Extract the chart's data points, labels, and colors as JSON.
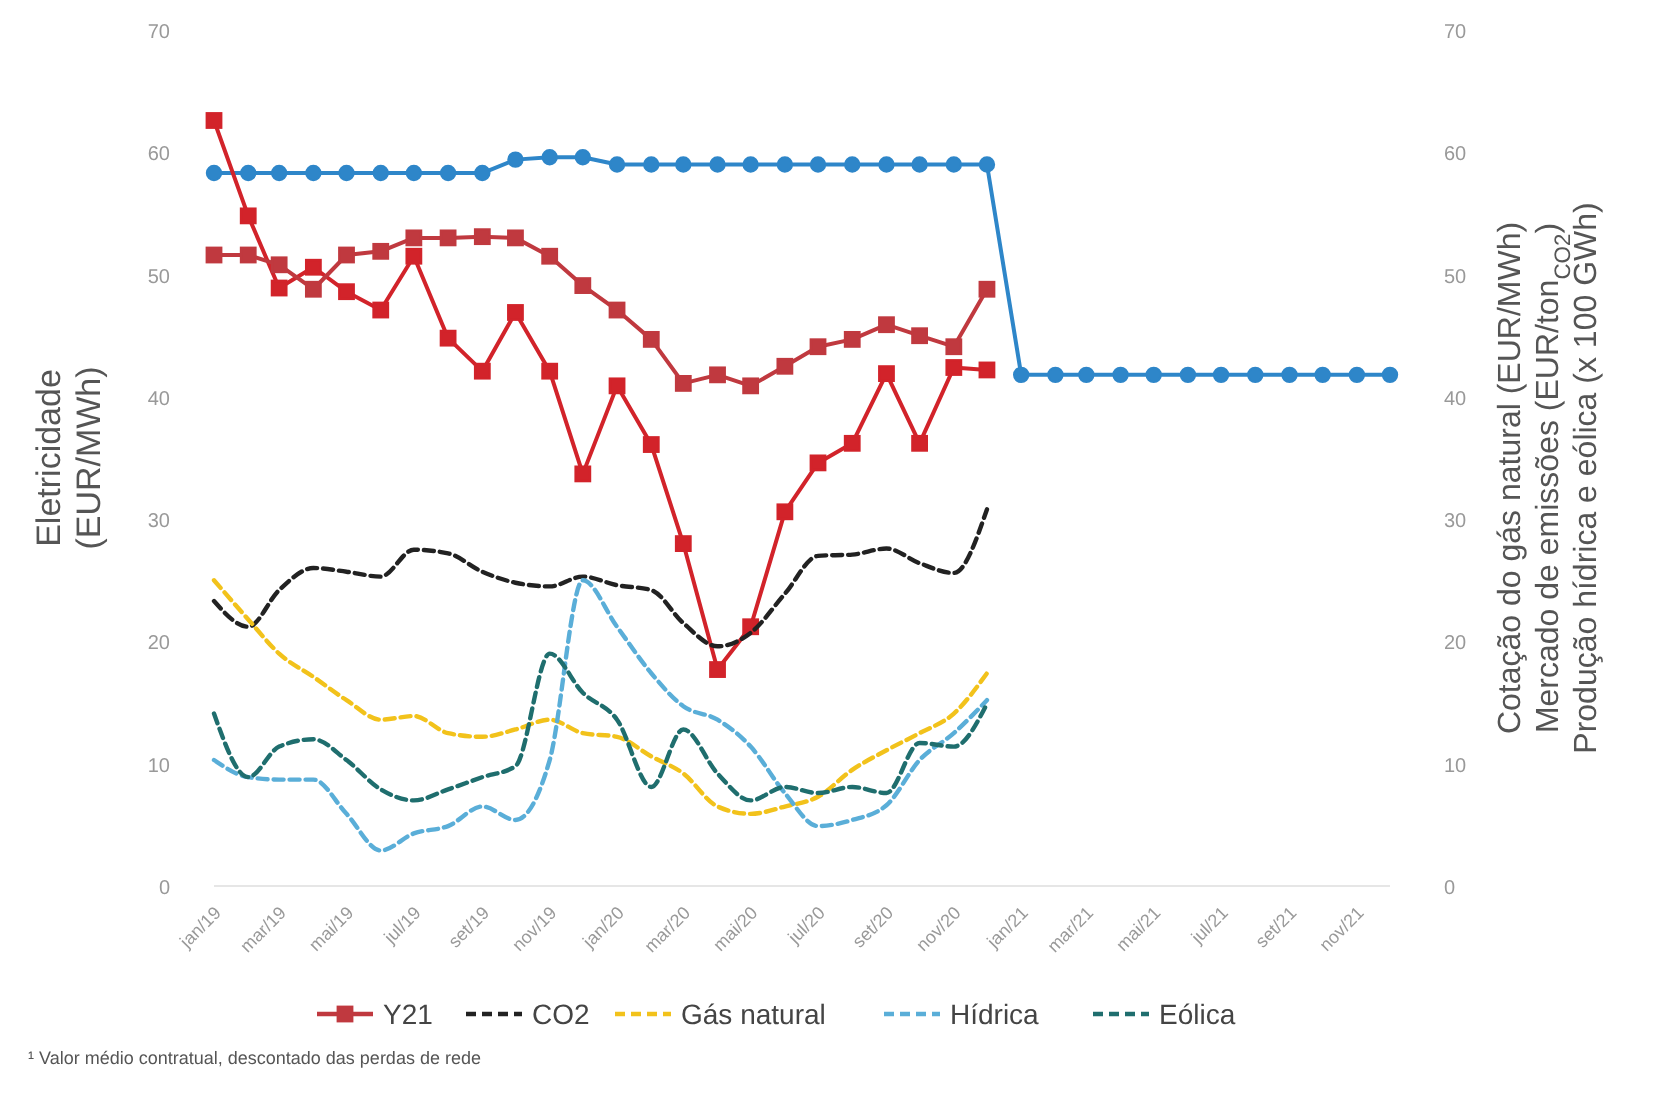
{
  "chart_data": {
    "type": "line",
    "ylabel": "Eletricidade\n(EUR/MWh)",
    "y2label": "Cotação do gás natural (EUR/MWh)\nMercado de emissões (EUR/ton$_{CO2}$)\nProdução hídrica e eólica (x 100 GWh)",
    "x": [
      "2019-01",
      "2019-02",
      "2019-03",
      "2019-04",
      "2019-05",
      "2019-06",
      "2019-07",
      "2019-08",
      "2019-09",
      "2019-10",
      "2019-11",
      "2019-12",
      "2020-01",
      "2020-02",
      "2020-03",
      "2020-04",
      "2020-05",
      "2020-06",
      "2020-07",
      "2020-08",
      "2020-09",
      "2020-10",
      "2020-11",
      "2020-12",
      "2021-01",
      "2021-02",
      "2021-03",
      "2021-04",
      "2021-05",
      "2021-06",
      "2021-07",
      "2021-08",
      "2021-09",
      "2021-10",
      "2021-11",
      "2021-12"
    ],
    "xticks": [
      {
        "value": "2019-01",
        "label": "jan/19"
      },
      {
        "value": "2019-03",
        "label": "mar/19"
      },
      {
        "value": "2019-05",
        "label": "mai/19"
      },
      {
        "value": "2019-07",
        "label": "jul/19"
      },
      {
        "value": "2019-09",
        "label": "set/19"
      },
      {
        "value": "2019-11",
        "label": "nov/19"
      },
      {
        "value": "2020-01",
        "label": "jan/20"
      },
      {
        "value": "2020-03",
        "label": "mar/20"
      },
      {
        "value": "2020-05",
        "label": "mai/20"
      },
      {
        "value": "2020-07",
        "label": "jul/20"
      },
      {
        "value": "2020-09",
        "label": "set/20"
      },
      {
        "value": "2020-11",
        "label": "nov/20"
      },
      {
        "value": "2021-01",
        "label": "jan/21"
      },
      {
        "value": "2021-03",
        "label": "mar/21"
      },
      {
        "value": "2021-05",
        "label": "mai/21"
      },
      {
        "value": "2021-07",
        "label": "jul/21"
      },
      {
        "value": "2021-09",
        "label": "set/21"
      },
      {
        "value": "2021-11",
        "label": "nov/21"
      }
    ],
    "xlim": [
      "2019-01",
      "2021-12"
    ],
    "ylim": [
      0,
      70
    ],
    "yticks": [
      0,
      10,
      20,
      30,
      40,
      50,
      60,
      70
    ],
    "y2lim": [
      0,
      70
    ],
    "y2ticks": [
      0,
      10,
      20,
      30,
      40,
      50,
      60,
      70
    ],
    "grid": false,
    "legend": "bottom",
    "series": [
      {
        "color": "#2e86c9",
        "marker": "circle",
        "line_style": "solid",
        "values": [
          58.3,
          58.3,
          58.3,
          58.3,
          58.3,
          58.3,
          58.3,
          58.3,
          58.3,
          59.4,
          59.6,
          59.6,
          59.0,
          59.0,
          59.0,
          59.0,
          59.0,
          59.0,
          59.0,
          59.0,
          59.0,
          59.0,
          59.0,
          59.0,
          41.8,
          41.8,
          41.8,
          41.8,
          41.8,
          41.8,
          41.8,
          41.8,
          41.8,
          41.8,
          41.8,
          41.8
        ]
      },
      {
        "color": "#d2232a",
        "marker": "square",
        "line_style": "solid",
        "values": [
          62.6,
          54.8,
          48.9,
          50.6,
          48.6,
          47.1,
          51.5,
          44.8,
          42.1,
          46.9,
          42.1,
          33.7,
          40.9,
          36.1,
          28.0,
          17.7,
          21.2,
          30.6,
          34.6,
          36.2,
          41.9,
          36.2,
          42.4,
          42.2,
          null,
          null,
          null,
          null,
          null,
          null,
          null,
          null,
          null,
          null,
          null,
          null
        ]
      },
      {
        "name": "Y21",
        "color": "#c0393f",
        "marker": "square",
        "line_style": "solid",
        "values": [
          51.6,
          51.6,
          50.8,
          48.8,
          51.6,
          51.9,
          53.0,
          53.0,
          53.1,
          53.0,
          51.5,
          49.1,
          47.1,
          44.7,
          41.1,
          41.8,
          40.9,
          42.5,
          44.1,
          44.7,
          45.9,
          45.0,
          44.1,
          48.8,
          null,
          null,
          null,
          null,
          null,
          null,
          null,
          null,
          null,
          null,
          null,
          null
        ]
      },
      {
        "name": "CO2",
        "color": "#222222",
        "marker": "none",
        "line_style": "dashed",
        "values": [
          23.3,
          21.2,
          24.2,
          26.0,
          25.7,
          25.3,
          27.5,
          27.2,
          25.7,
          24.8,
          24.5,
          25.3,
          24.6,
          24.2,
          21.5,
          19.6,
          20.7,
          23.9,
          27.0,
          27.1,
          27.6,
          26.4,
          25.6,
          30.8,
          null,
          null,
          null,
          null,
          null,
          null,
          null,
          null,
          null,
          null,
          null,
          null
        ]
      },
      {
        "name": "Gás natural",
        "color": "#f2c21b",
        "marker": "none",
        "line_style": "dashed",
        "values": [
          25.0,
          21.8,
          19.0,
          17.1,
          15.2,
          13.6,
          13.9,
          12.5,
          12.2,
          12.8,
          13.6,
          12.5,
          12.2,
          10.6,
          9.2,
          6.5,
          5.9,
          6.5,
          7.3,
          9.5,
          11.1,
          12.5,
          14.1,
          17.4,
          null,
          null,
          null,
          null,
          null,
          null,
          null,
          null,
          null,
          null,
          null,
          null
        ]
      },
      {
        "name": "Hídrica",
        "color": "#5aaed8",
        "marker": "none",
        "line_style": "dashed",
        "values": [
          10.3,
          8.9,
          8.7,
          8.7,
          5.9,
          2.9,
          4.3,
          4.9,
          6.5,
          5.4,
          10.3,
          25.0,
          21.2,
          17.4,
          14.7,
          13.6,
          11.4,
          7.6,
          4.9,
          5.4,
          6.6,
          10.3,
          12.5,
          15.2,
          null,
          null,
          null,
          null,
          null,
          null,
          null,
          null,
          null,
          null,
          null,
          null
        ]
      },
      {
        "name": "Eólica",
        "color": "#1f6e6e",
        "marker": "none",
        "line_style": "dashed",
        "values": [
          14.1,
          8.9,
          11.4,
          12.0,
          10.3,
          7.9,
          7.0,
          7.9,
          8.9,
          9.8,
          19.0,
          15.8,
          13.6,
          8.1,
          12.8,
          9.2,
          7.0,
          8.1,
          7.6,
          8.1,
          7.6,
          11.7,
          11.4,
          14.9,
          null,
          null,
          null,
          null,
          null,
          null,
          null,
          null,
          null,
          null,
          null,
          null
        ]
      }
    ],
    "annotations": [
      "¹ Valor médio contratual, descontado das perdas de rede"
    ]
  }
}
